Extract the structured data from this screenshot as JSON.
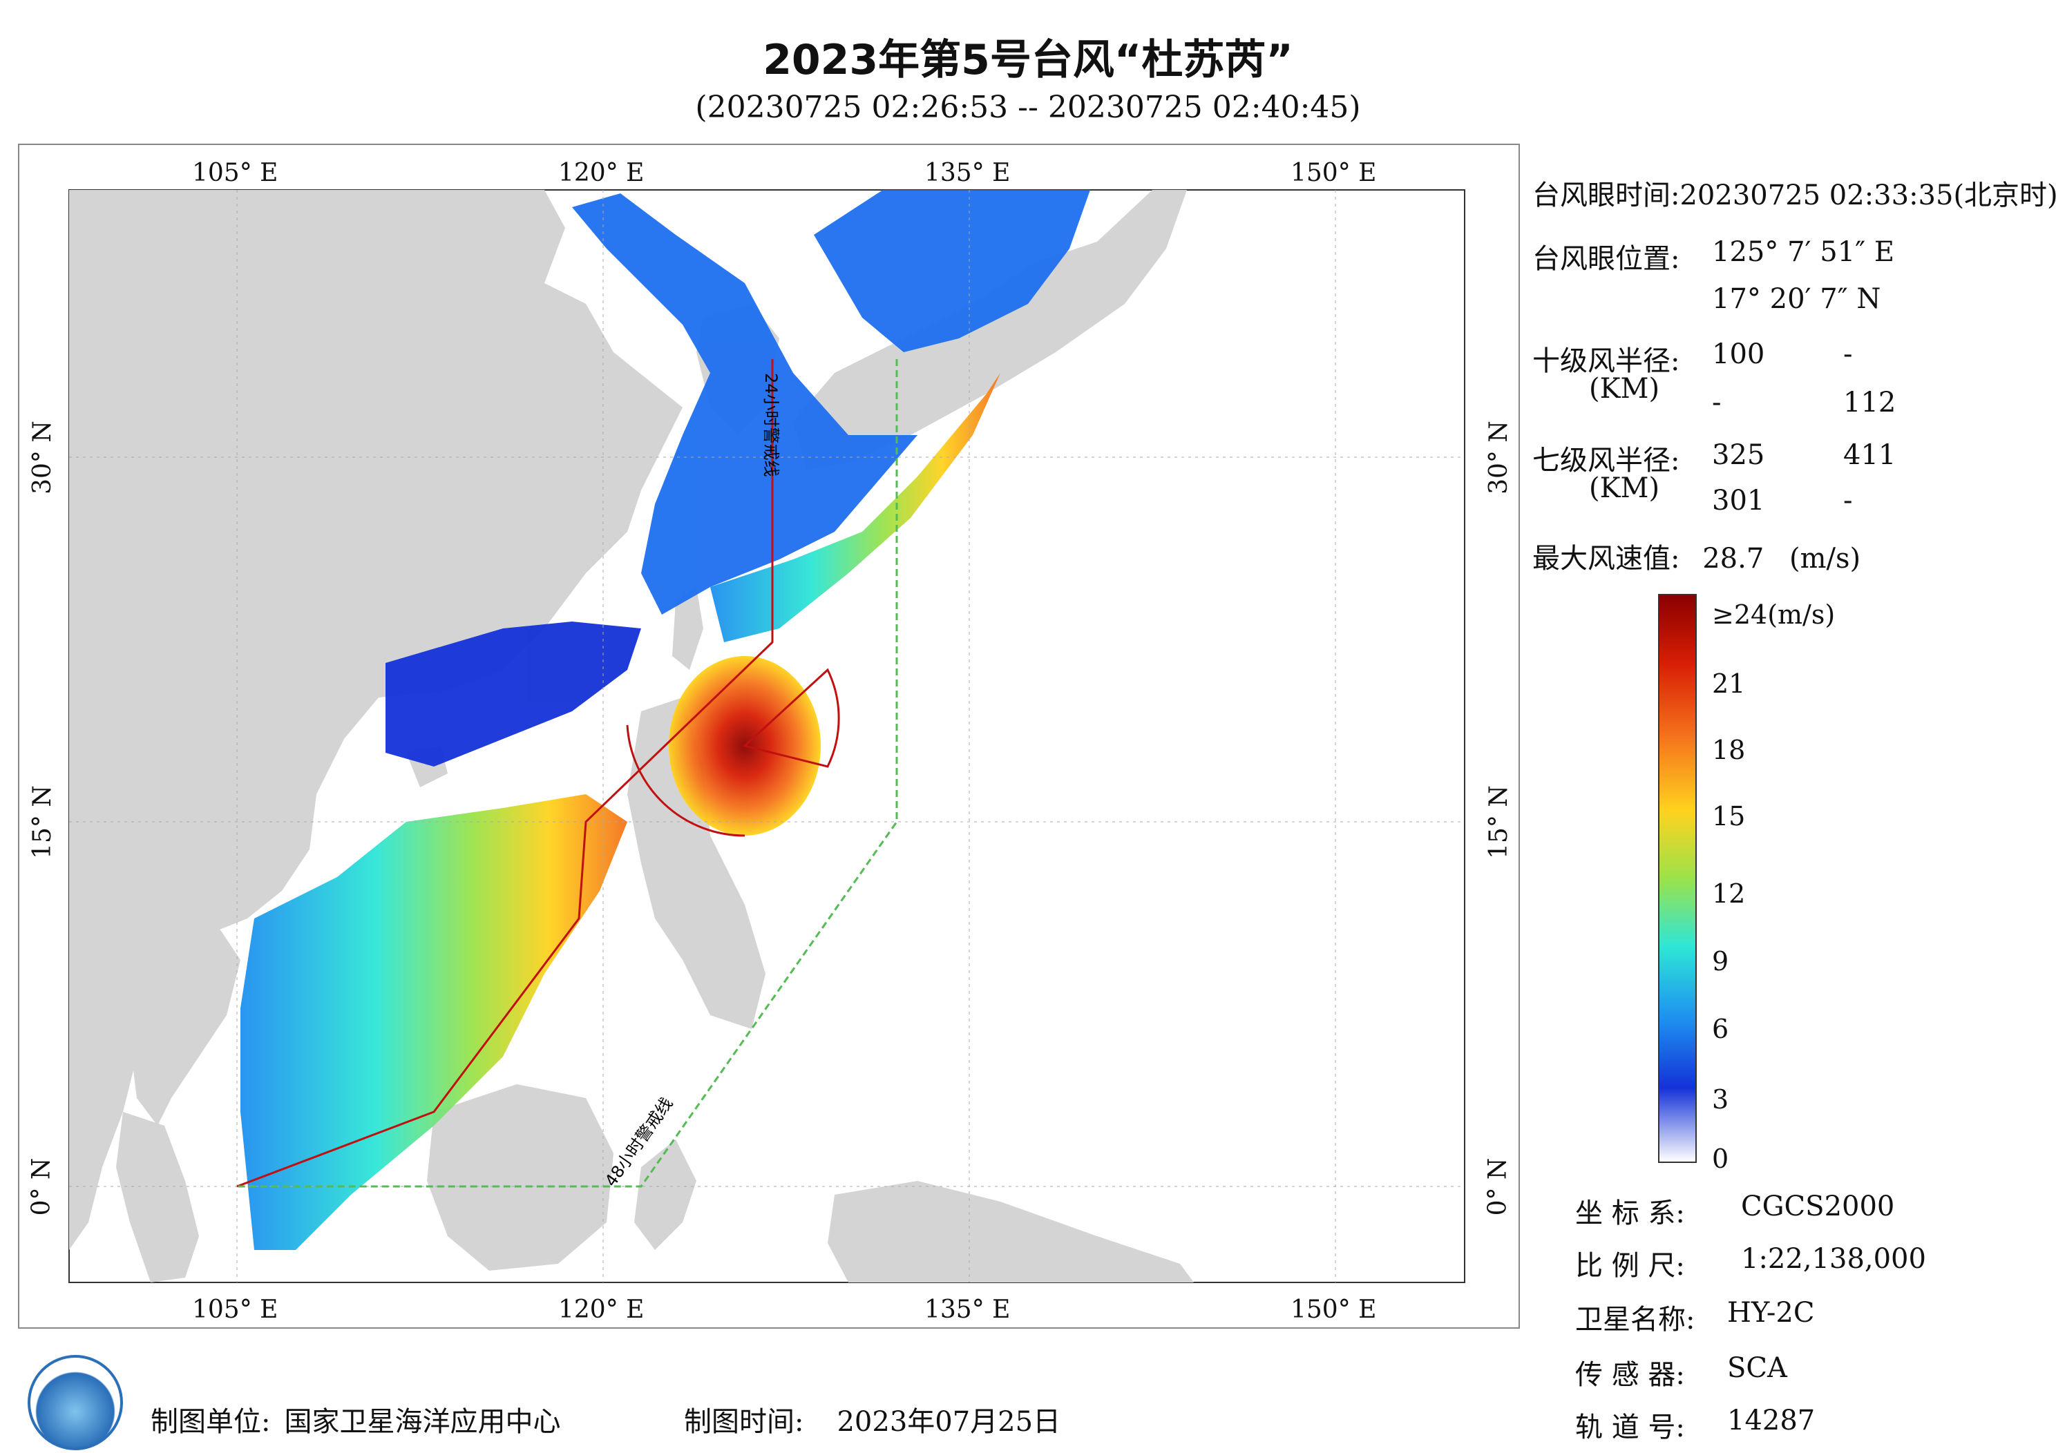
{
  "header": {
    "title": "2023年第5号台风“杜苏芮”",
    "subtitle": "(20230725 02:26:53 -- 20230725 02:40:45)"
  },
  "map": {
    "lon_ticks_top": [
      "105° E",
      "120° E",
      "135° E",
      "150° E"
    ],
    "lon_ticks_bottom": [
      "105° E",
      "120° E",
      "135° E",
      "150° E"
    ],
    "lat_ticks": [
      "30° N",
      "15° N",
      "0° N"
    ],
    "warning_24h": "24小时警戒线",
    "warning_48h": "48小时警戒线",
    "colors": {
      "land": "#d4d4d4",
      "ocean": "#ffffff",
      "track": "#c01010",
      "warning48": "#55bb55"
    }
  },
  "info": {
    "eye_time_label": "台风眼时间:",
    "eye_time_value": "20230725 02:33:35(北京时)",
    "eye_pos_label": "台风眼位置:",
    "eye_lon": "125° 7′ 51″ E",
    "eye_lat": "17° 20′ 7″ N",
    "r10_label": "十级风半径:",
    "r10_unit": "(KM)",
    "r10_values": [
      "100",
      "-",
      "-",
      "112"
    ],
    "r7_label": "七级风半径:",
    "r7_unit": "(KM)",
    "r7_values": [
      "325",
      "411",
      "301",
      "-"
    ],
    "max_wind_label": "最大风速值:",
    "max_wind_value": "28.7",
    "max_wind_unit": "(m/s)"
  },
  "colorbar": {
    "labels": [
      "≥24(m/s)",
      "21",
      "18",
      "15",
      "12",
      "9",
      "6",
      "3",
      "0"
    ],
    "stops": [
      "#8b0000",
      "#d81e05",
      "#f5731c",
      "#ffd21e",
      "#9be24a",
      "#2ee6d6",
      "#1e8ff0",
      "#1432d8",
      "#ffffff"
    ]
  },
  "meta": {
    "crs_label": "坐  标  系:",
    "crs_value": "CGCS2000",
    "scale_label": "比  例  尺:",
    "scale_value": "1:22,138,000",
    "sat_label": "卫星名称:",
    "sat_value": "HY-2C",
    "sensor_label": "传  感  器:",
    "sensor_value": "SCA",
    "orbit_label": "轨  道  号:",
    "orbit_value": "14287"
  },
  "footer": {
    "org_label": "制图单位:",
    "org_value": "国家卫星海洋应用中心",
    "date_label": "制图时间:",
    "date_value": "2023年07月25日"
  }
}
